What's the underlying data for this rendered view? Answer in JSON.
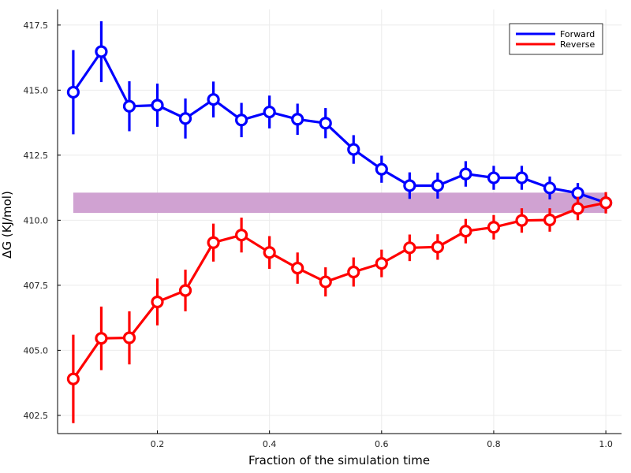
{
  "chart_data": {
    "type": "line",
    "title": "",
    "xlabel": "Fraction of the simulation time",
    "ylabel": "ΔG (KJ/mol)",
    "xlim": [
      0.022,
      1.028
    ],
    "ylim": [
      401.8,
      418.1
    ],
    "xticks": [
      0.2,
      0.4,
      0.6,
      0.8,
      1.0
    ],
    "xtick_labels": [
      "0.2",
      "0.4",
      "0.6",
      "0.8",
      "1.0"
    ],
    "yticks": [
      402.5,
      405.0,
      407.5,
      410.0,
      412.5,
      415.0,
      417.5
    ],
    "ytick_labels": [
      "402.5",
      "405.0",
      "407.5",
      "410.0",
      "412.5",
      "415.0",
      "417.5"
    ],
    "grid": true,
    "legend_position": "top-right",
    "x": [
      0.05,
      0.1,
      0.15,
      0.2,
      0.25,
      0.3,
      0.35,
      0.4,
      0.45,
      0.5,
      0.55,
      0.6,
      0.65,
      0.7,
      0.75,
      0.8,
      0.85,
      0.9,
      0.95,
      1.0
    ],
    "series": [
      {
        "name": "Forward",
        "color": "#0000ff",
        "values": [
          414.92,
          416.48,
          414.38,
          414.42,
          413.91,
          414.64,
          413.85,
          414.16,
          413.88,
          413.73,
          412.72,
          411.96,
          411.33,
          411.33,
          411.78,
          411.63,
          411.63,
          411.24,
          411.04,
          410.67
        ],
        "errors": [
          1.62,
          1.17,
          0.96,
          0.83,
          0.77,
          0.69,
          0.66,
          0.63,
          0.6,
          0.58,
          0.55,
          0.52,
          0.51,
          0.5,
          0.49,
          0.46,
          0.46,
          0.44,
          0.39,
          0.32
        ]
      },
      {
        "name": "Reverse",
        "color": "#ff0000",
        "values": [
          403.9,
          405.46,
          405.48,
          406.86,
          407.3,
          409.14,
          409.43,
          408.76,
          408.16,
          407.63,
          408.01,
          408.34,
          408.94,
          408.97,
          409.58,
          409.73,
          409.99,
          410.01,
          410.45,
          410.67
        ],
        "errors": [
          1.7,
          1.22,
          1.02,
          0.9,
          0.8,
          0.73,
          0.67,
          0.63,
          0.6,
          0.56,
          0.56,
          0.53,
          0.51,
          0.49,
          0.47,
          0.47,
          0.47,
          0.45,
          0.45,
          0.41
        ]
      }
    ],
    "band": {
      "x_start": 0.05,
      "x_end": 1.0,
      "y_low": 410.28,
      "y_high": 411.06,
      "color": "#d0a2d2"
    }
  },
  "legend": {
    "items": [
      {
        "label": "Forward",
        "color": "#0000ff"
      },
      {
        "label": "Reverse",
        "color": "#ff0000"
      }
    ]
  }
}
